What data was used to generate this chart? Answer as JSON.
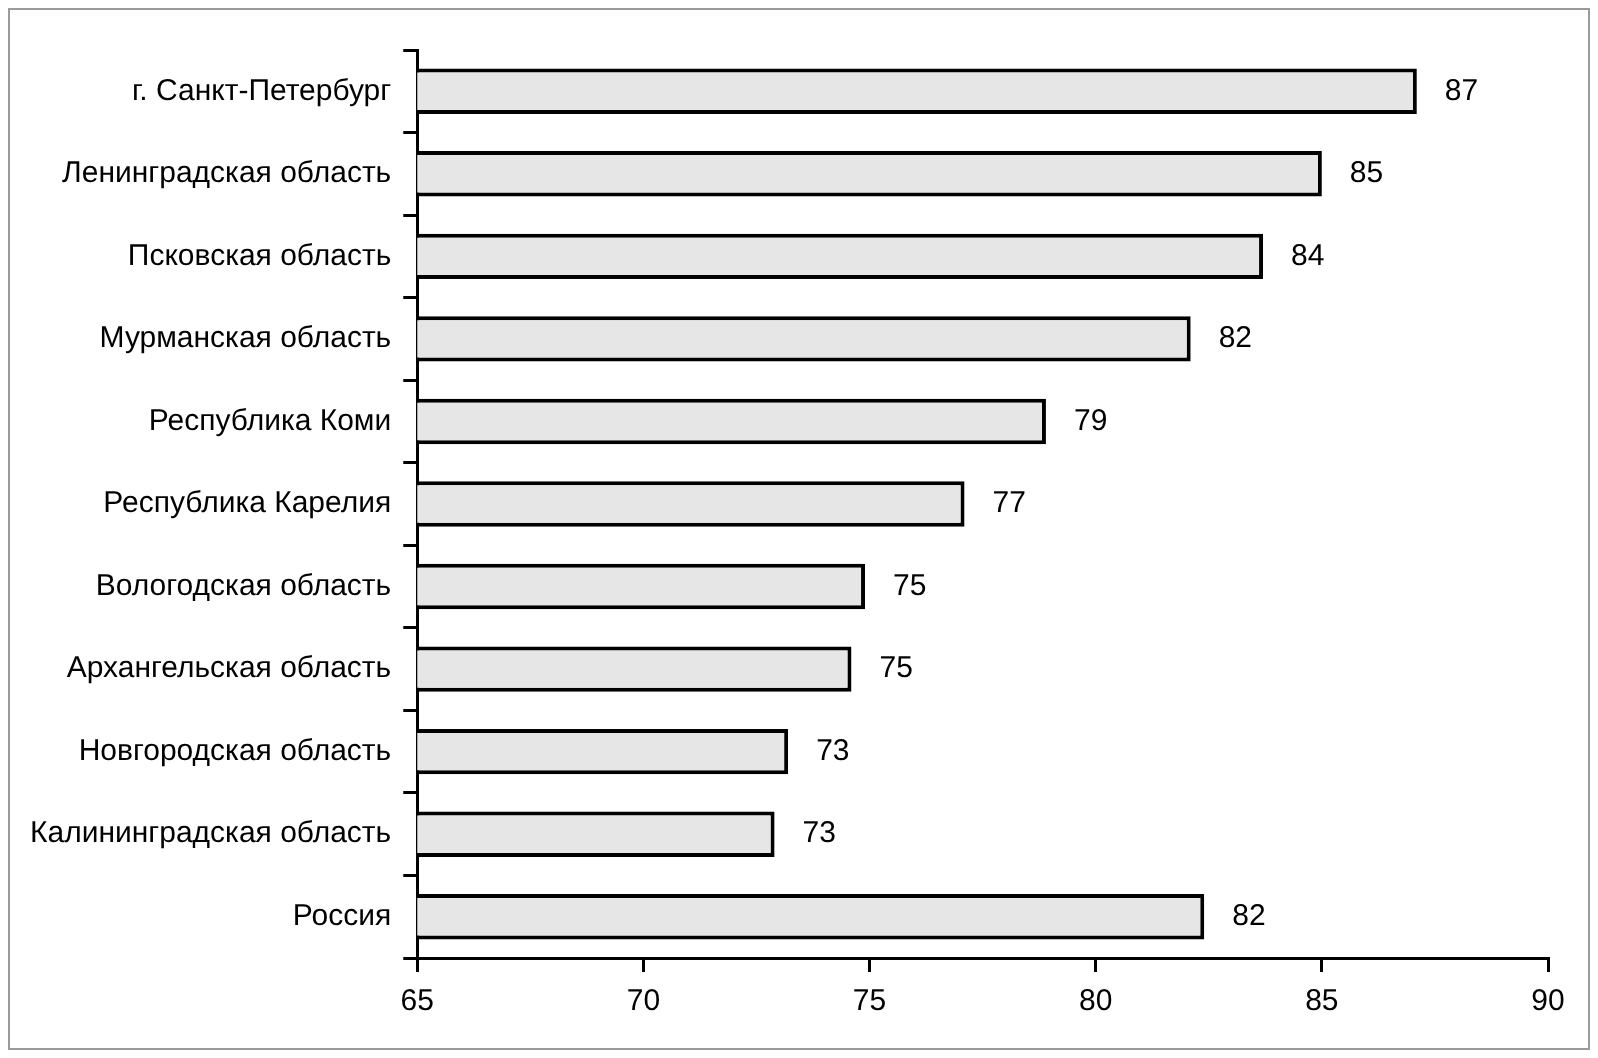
{
  "chart_data": {
    "type": "bar",
    "orientation": "horizontal",
    "categories": [
      "г. Санкт-Петербург",
      "Ленинградская область",
      "Псковская область",
      "Мурманская область",
      "Республика Коми",
      "Республика Карелия",
      "Вологодская область",
      "Архангельская область",
      "Новгородская область",
      "Калининградская область",
      "Россия"
    ],
    "values": [
      87.1,
      85.0,
      83.7,
      82.1,
      78.9,
      77.1,
      74.9,
      74.6,
      73.2,
      72.9,
      82.4
    ],
    "value_labels": [
      "87",
      "85",
      "84",
      "82",
      "79",
      "77",
      "75",
      "75",
      "73",
      "73",
      "82"
    ],
    "color": "#e6e6e6",
    "xlim": [
      65,
      90
    ],
    "xticks": [
      65,
      70,
      75,
      80,
      85,
      90
    ],
    "grid": false,
    "legend": false
  }
}
